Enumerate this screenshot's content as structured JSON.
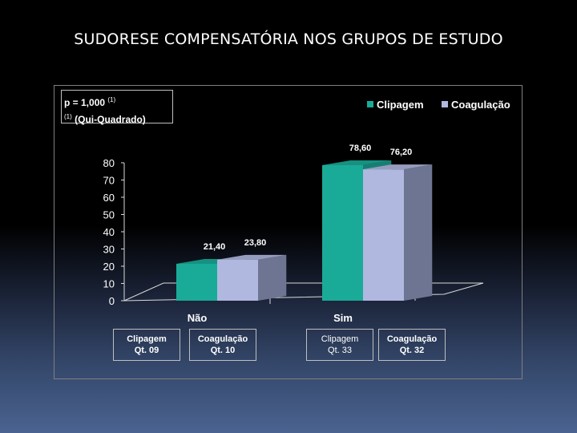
{
  "slide_title": "SUDORESE COMPENSATÓRIA NOS GRUPOS DE ESTUDO",
  "stat_note": {
    "line1": "p = 1,000",
    "sup1": "(1)",
    "sup2": "(1)",
    "line2": "(Qui-Quadrado)"
  },
  "chart_data": {
    "type": "bar",
    "categories": [
      "Não",
      "Sim"
    ],
    "series": [
      {
        "name": "Clipagem",
        "values": [
          21.4,
          78.6
        ],
        "labels": [
          "21,40",
          "78,60"
        ],
        "color": "#1aab98"
      },
      {
        "name": "Coagulação",
        "values": [
          23.8,
          76.2
        ],
        "labels": [
          "23,80",
          "76,20"
        ],
        "color": "#b0b8e0"
      }
    ],
    "ylim": [
      0,
      80
    ],
    "yticks": [
      "0",
      "10",
      "20",
      "30",
      "40",
      "50",
      "60",
      "70",
      "80"
    ],
    "legend_position": "top-right",
    "grid": false,
    "three_d": true
  },
  "samples": [
    {
      "label": "Clipagem",
      "count": "Qt. 09",
      "bold": true
    },
    {
      "label": "Coagulação",
      "count": "Qt. 10",
      "bold": true
    },
    {
      "label": "Clipagem",
      "count": "Qt. 33",
      "bold": false
    },
    {
      "label": "Coagulação",
      "count": "Qt. 32",
      "bold": true
    }
  ]
}
